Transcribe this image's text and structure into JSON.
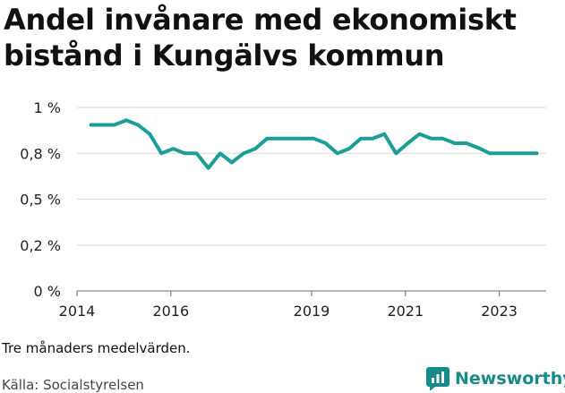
{
  "title": "Andel invånare med ekonomiskt bistånd i Kungälvs kommun",
  "note": "Tre månaders medelvärden.",
  "source": "Källa: Socialstyrelsen",
  "brand": {
    "name": "Newsworthy",
    "icon": "newsworthy-logo-icon",
    "color": "#168b8a"
  },
  "chart_data": {
    "type": "line",
    "title": "Andel invånare med ekonomiskt bistånd i Kungälvs kommun",
    "xlabel": "",
    "ylabel": "",
    "y_tick_labels": [
      "0 %",
      "0,2 %",
      "0,5 %",
      "0,8 %",
      "1 %"
    ],
    "y_ticks": [
      0,
      0.25,
      0.5,
      0.75,
      1.0
    ],
    "ylim": [
      0,
      1.0
    ],
    "x_tick_labels": [
      "2014",
      "2016",
      "2019",
      "2021",
      "2023"
    ],
    "x_ticks": [
      2014.0,
      2016.0,
      2019.0,
      2021.0,
      2023.0
    ],
    "xlim": [
      2014.0,
      2024.0
    ],
    "grid": true,
    "line_color": "#1a9e96",
    "series": [
      {
        "x": [
          2014.3,
          2014.55,
          2014.8,
          2015.05,
          2015.3,
          2015.55,
          2015.8,
          2016.05,
          2016.3,
          2016.55,
          2016.8,
          2017.05,
          2017.3,
          2017.55,
          2017.8,
          2018.05,
          2018.3,
          2018.55,
          2018.8,
          2019.05,
          2019.3,
          2019.55,
          2019.8,
          2020.05,
          2020.3,
          2020.55,
          2020.8,
          2021.05,
          2021.3,
          2021.55,
          2021.8,
          2022.05,
          2022.3,
          2022.55,
          2022.8,
          2023.05,
          2023.3,
          2023.55,
          2023.8
        ],
        "values": [
          0.905,
          0.905,
          0.905,
          0.93,
          0.905,
          0.855,
          0.75,
          0.775,
          0.75,
          0.75,
          0.67,
          0.75,
          0.7,
          0.75,
          0.775,
          0.83,
          0.83,
          0.83,
          0.83,
          0.83,
          0.805,
          0.75,
          0.775,
          0.83,
          0.83,
          0.855,
          0.75,
          0.805,
          0.855,
          0.83,
          0.83,
          0.805,
          0.805,
          0.78,
          0.75,
          0.75,
          0.75,
          0.75,
          0.75
        ]
      }
    ]
  }
}
